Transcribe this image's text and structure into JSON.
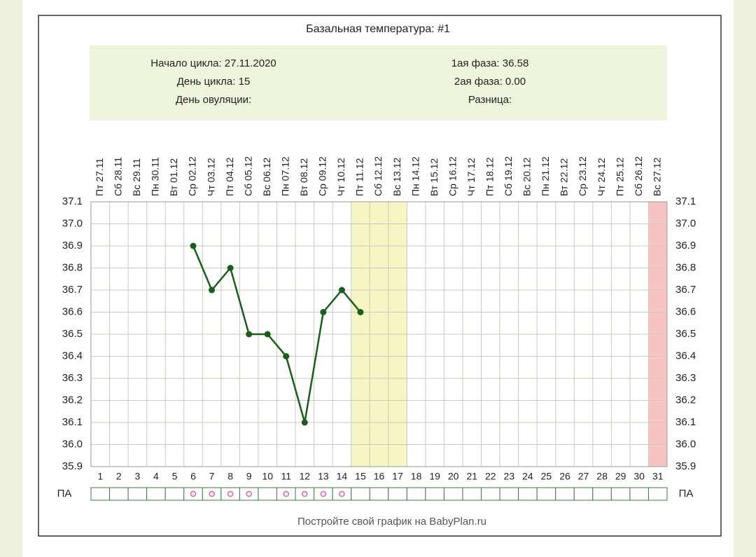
{
  "chart_data": {
    "type": "line",
    "title": "Базальная температура: #1",
    "info_left": [
      "Начало цикла: 27.11.2020",
      "День цикла: 15",
      "День овуляции:"
    ],
    "info_right": [
      "1ая фаза: 36.58",
      "2ая фаза: 0.00",
      "Разница:"
    ],
    "categories": [
      "Пт 27.11",
      "Сб 28.11",
      "Вс 29.11",
      "Пн 30.11",
      "Вт 01.12",
      "Ср 02.12",
      "Чт 03.12",
      "Пт 04.12",
      "Сб 05.12",
      "Вс 06.12",
      "Пн 07.12",
      "Вт 08.12",
      "Ср 09.12",
      "Чт 10.12",
      "Пт 11.12",
      "Сб 12.12",
      "Вс 13.12",
      "Пн 14.12",
      "Вт 15.12",
      "Ср 16.12",
      "Чт 17.12",
      "Пт 18.12",
      "Сб 19.12",
      "Вс 20.12",
      "Пн 21.12",
      "Вт 22.12",
      "Ср 23.12",
      "Чт 24.12",
      "Пт 25.12",
      "Сб 26.12",
      "Вс 27.12"
    ],
    "days": [
      1,
      2,
      3,
      4,
      5,
      6,
      7,
      8,
      9,
      10,
      11,
      12,
      13,
      14,
      15,
      16,
      17,
      18,
      19,
      20,
      21,
      22,
      23,
      24,
      25,
      26,
      27,
      28,
      29,
      30,
      31
    ],
    "values": [
      null,
      null,
      null,
      null,
      null,
      36.9,
      36.7,
      36.8,
      36.5,
      36.5,
      36.4,
      36.1,
      36.6,
      36.7,
      36.6,
      null,
      null,
      null,
      null,
      null,
      null,
      null,
      null,
      null,
      null,
      null,
      null,
      null,
      null,
      null,
      null
    ],
    "color": "#1b5e1b",
    "ylim": [
      35.9,
      37.1
    ],
    "yticks": [
      35.9,
      {
        "value": 36.0,
        "label": "36.0"
      },
      36.1,
      36.2,
      36.3,
      36.4,
      36.5,
      36.6,
      36.7,
      36.8,
      36.9,
      {
        "value": 37.0,
        "label": "37.0"
      },
      37.1
    ],
    "grid": true,
    "highlights": [
      {
        "from": 15,
        "to": 17,
        "color": "#f6f6c4"
      },
      {
        "from": 31,
        "to": 31,
        "color": "#f8c3c3"
      }
    ],
    "pa_label": "ПА",
    "pa_marks": [
      false,
      false,
      false,
      false,
      false,
      true,
      true,
      true,
      true,
      false,
      true,
      true,
      true,
      true,
      false,
      false,
      false,
      false,
      false,
      false,
      false,
      false,
      false,
      false,
      false,
      false,
      false,
      false,
      false,
      false,
      false
    ],
    "pa_color": "#e0609a",
    "footer": "Постройте свой график на BabyPlan.ru"
  }
}
